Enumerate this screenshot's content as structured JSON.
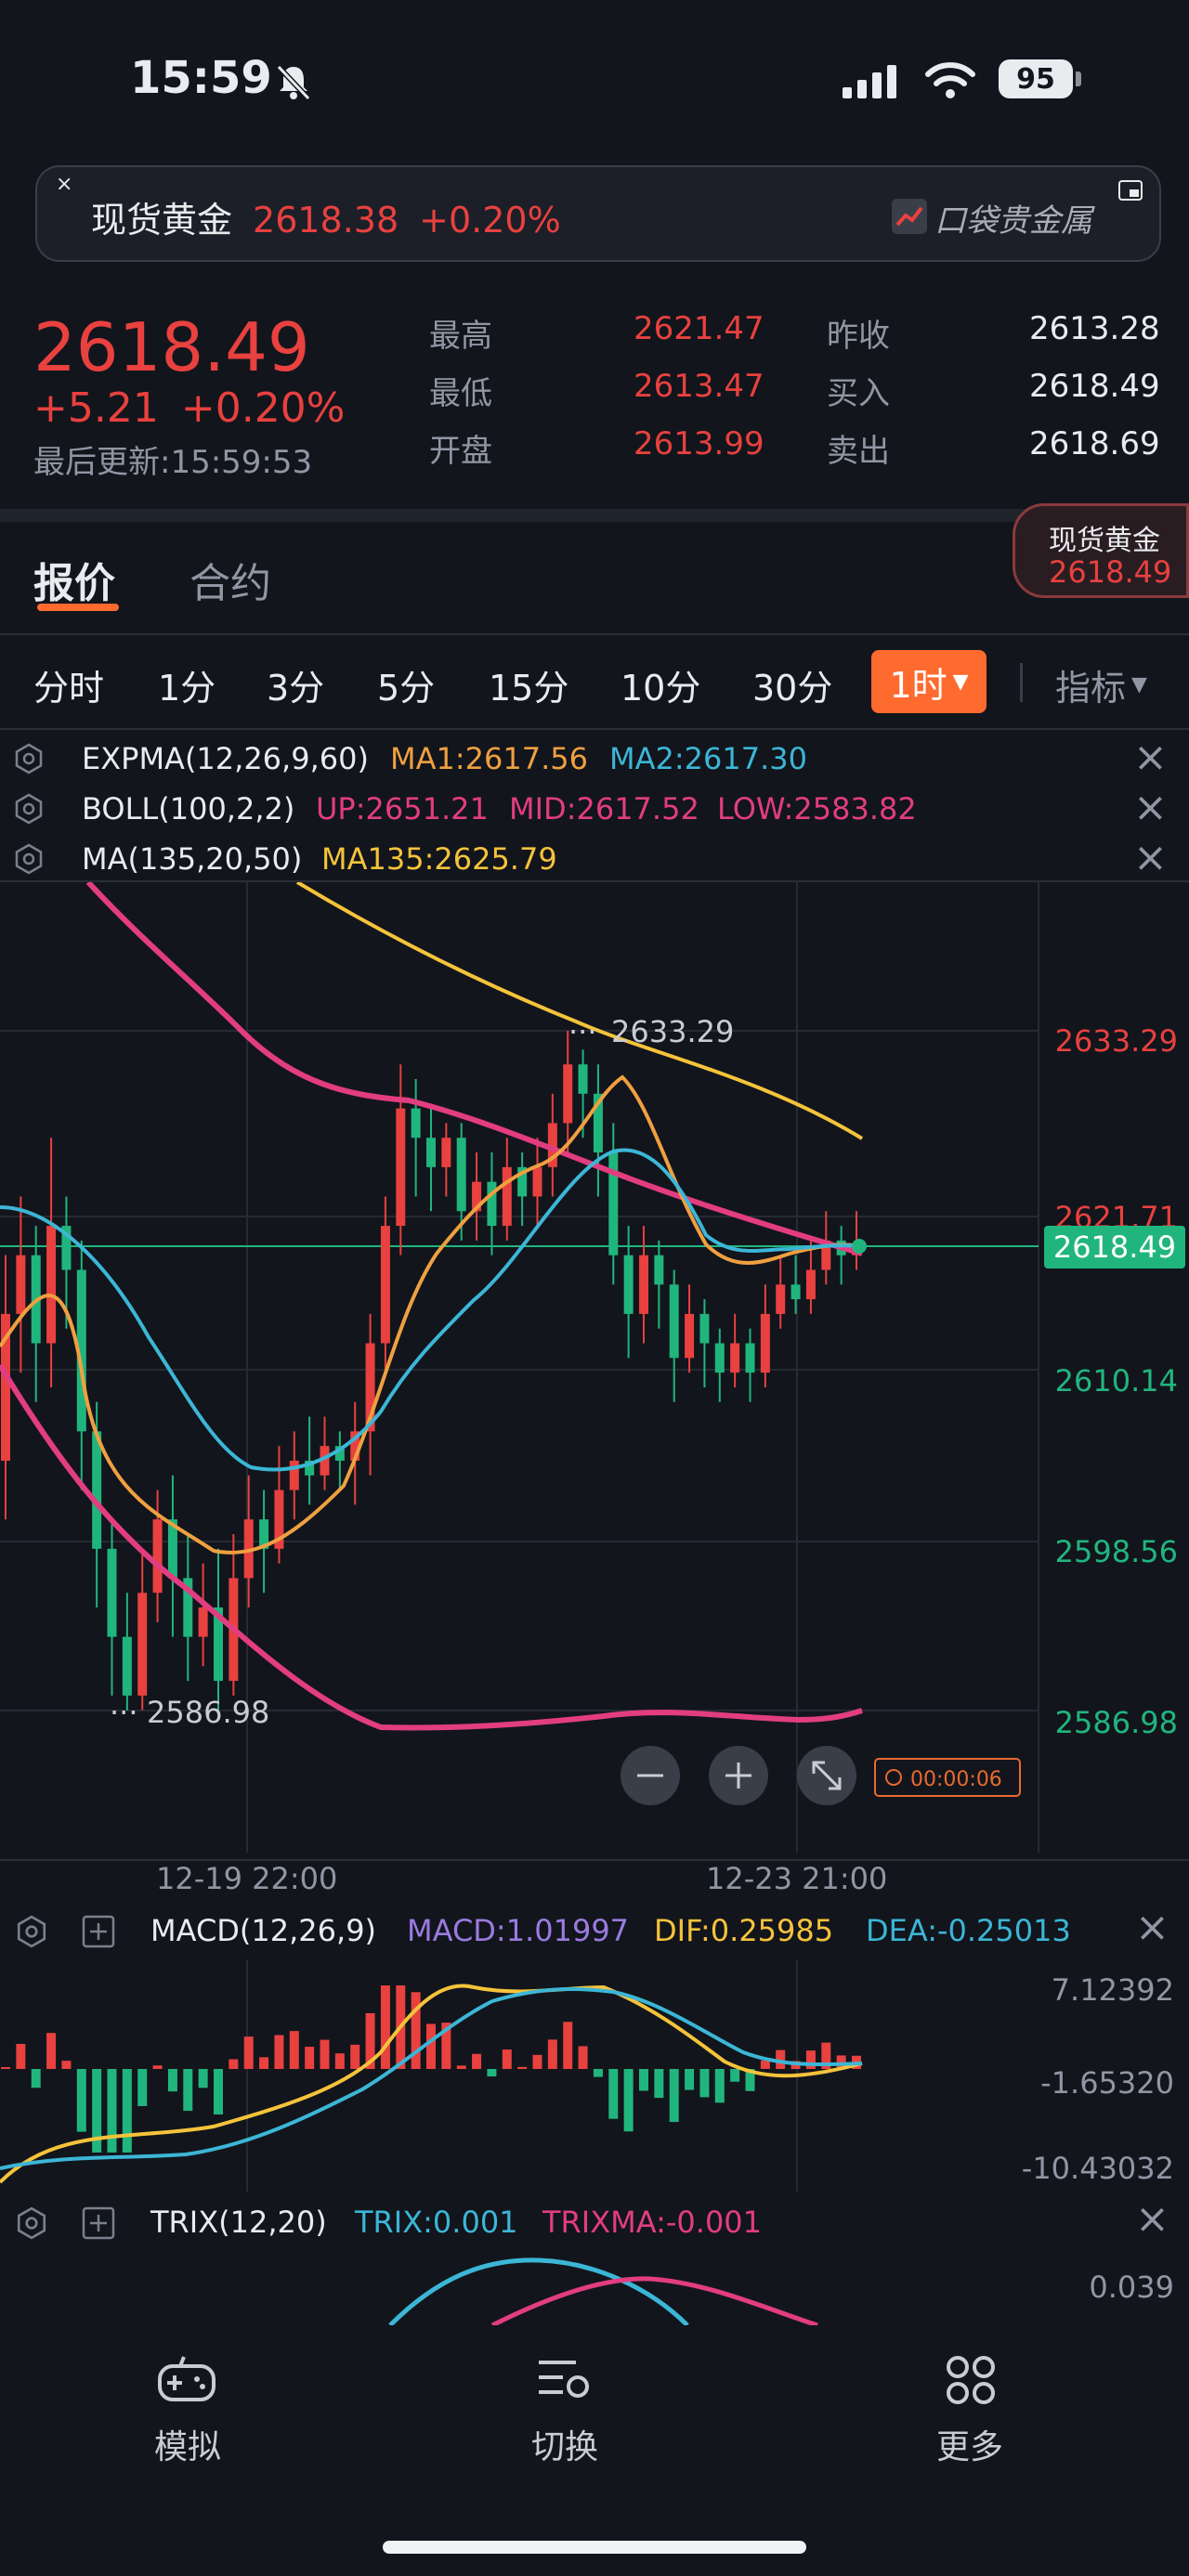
{
  "status_bar": {
    "time": "15:59",
    "battery": "95"
  },
  "banner": {
    "title": "现货黄金",
    "price": "2618.38",
    "change": "+0.20%",
    "brand": "口袋贵金属"
  },
  "quote": {
    "price": "2618.49",
    "change": "+5.21",
    "change_pct": "+0.20%",
    "updated": "最后更新:15:59:53",
    "stats": [
      {
        "label": "最高",
        "value": "2621.47",
        "label2": "昨收",
        "value2": "2613.28"
      },
      {
        "label": "最低",
        "value": "2613.47",
        "label2": "买入",
        "value2": "2618.49"
      },
      {
        "label": "开盘",
        "value": "2613.99",
        "label2": "卖出",
        "value2": "2618.69"
      }
    ]
  },
  "floating_badge": {
    "name": "现货黄金",
    "price": "2618.49"
  },
  "tabs": [
    "报价",
    "合约"
  ],
  "intervals": [
    "分时",
    "1分",
    "3分",
    "5分",
    "15分",
    "10分",
    "30分",
    "1时"
  ],
  "indicator_menu": "指标",
  "overlays": [
    {
      "name": "EXPMA(12,26,9,60)",
      "v1": "MA1:2617.56",
      "v2": "MA2:2617.30",
      "v3": ""
    },
    {
      "name": "BOLL(100,2,2)",
      "v1": "UP:2651.21",
      "v2": "MID:2617.52",
      "v3": "LOW:2583.82"
    },
    {
      "name": "MA(135,20,50)",
      "v1": "MA135:2625.79",
      "v2": "",
      "v3": ""
    }
  ],
  "chart_data": {
    "type": "candlestick",
    "y_axis_labels": [
      "2633.29",
      "2621.71",
      "2610.14",
      "2598.56",
      "2586.98"
    ],
    "current_price": "2618.49",
    "high_marker": "2633.29",
    "low_marker": "2586.98",
    "x_labels": [
      "12-19 22:00",
      "12-23 21:00"
    ],
    "countdown": "00:00:06",
    "candles": [
      [
        2604,
        2614,
        2600,
        2618
      ],
      [
        2614,
        2618,
        2610,
        2622
      ],
      [
        2618,
        2612,
        2608,
        2620
      ],
      [
        2612,
        2620,
        2609,
        2626
      ],
      [
        2620,
        2617,
        2613,
        2622
      ],
      [
        2617,
        2606,
        2602,
        2619
      ],
      [
        2606,
        2598,
        2594,
        2608
      ],
      [
        2598,
        2592,
        2588,
        2600
      ],
      [
        2592,
        2588,
        2586.98,
        2595
      ],
      [
        2588,
        2595,
        2587,
        2598
      ],
      [
        2595,
        2600,
        2593,
        2602
      ],
      [
        2600,
        2596,
        2592,
        2603
      ],
      [
        2596,
        2592,
        2589,
        2599
      ],
      [
        2592,
        2594,
        2590,
        2597
      ],
      [
        2594,
        2589,
        2587,
        2598
      ],
      [
        2589,
        2596,
        2588,
        2599
      ],
      [
        2596,
        2600,
        2594,
        2603
      ],
      [
        2600,
        2598,
        2595,
        2602
      ],
      [
        2598,
        2602,
        2597,
        2605
      ],
      [
        2602,
        2604,
        2600,
        2606
      ],
      [
        2604,
        2603,
        2601,
        2607
      ],
      [
        2603,
        2605,
        2602,
        2607
      ],
      [
        2605,
        2604,
        2602,
        2606
      ],
      [
        2604,
        2606,
        2601,
        2608
      ],
      [
        2606,
        2612,
        2603,
        2614
      ],
      [
        2612,
        2620,
        2610,
        2622
      ],
      [
        2620,
        2628,
        2618,
        2631
      ],
      [
        2628,
        2626,
        2622,
        2630
      ],
      [
        2626,
        2624,
        2621,
        2628
      ],
      [
        2624,
        2626,
        2622,
        2627
      ],
      [
        2626,
        2621,
        2619,
        2627
      ],
      [
        2621,
        2623,
        2619,
        2625
      ],
      [
        2623,
        2620,
        2618,
        2625
      ],
      [
        2620,
        2624,
        2619,
        2626
      ],
      [
        2624,
        2622,
        2620,
        2625
      ],
      [
        2622,
        2624,
        2620,
        2626
      ],
      [
        2624,
        2627,
        2622,
        2629
      ],
      [
        2627,
        2631,
        2625,
        2633.29
      ],
      [
        2631,
        2629,
        2626,
        2632
      ],
      [
        2629,
        2625,
        2622,
        2631
      ],
      [
        2625,
        2618,
        2616,
        2627
      ],
      [
        2618,
        2614,
        2611,
        2620
      ],
      [
        2614,
        2618,
        2612,
        2620
      ],
      [
        2618,
        2616,
        2613,
        2619
      ],
      [
        2616,
        2611,
        2608,
        2617
      ],
      [
        2611,
        2614,
        2610,
        2616
      ],
      [
        2614,
        2612,
        2609,
        2615
      ],
      [
        2612,
        2610,
        2608,
        2613
      ],
      [
        2610,
        2612,
        2609,
        2614
      ],
      [
        2612,
        2610,
        2608,
        2613
      ],
      [
        2610,
        2614,
        2609,
        2616
      ],
      [
        2614,
        2616,
        2613,
        2618
      ],
      [
        2616,
        2615,
        2614,
        2618
      ],
      [
        2615,
        2617,
        2614,
        2619
      ],
      [
        2617,
        2619,
        2616,
        2621
      ],
      [
        2619,
        2618,
        2616,
        2620
      ],
      [
        2618,
        2618.49,
        2617,
        2621
      ]
    ]
  },
  "macd": {
    "name": "MACD(12,26,9)",
    "macd": "MACD:1.01997",
    "dif": "DIF:0.25985",
    "dea": "DEA:-0.25013",
    "axis": [
      "7.12392",
      "-1.65320",
      "-10.43032"
    ]
  },
  "trix": {
    "name": "TRIX(12,20)",
    "trix": "TRIX:0.001",
    "trixma": "TRIXMA:-0.001",
    "axis": [
      "0.039"
    ]
  },
  "bottom_nav": [
    "模拟",
    "切换",
    "更多"
  ],
  "colors": {
    "up": "#e8413f",
    "down": "#21b57e",
    "accent": "#ff7a2f",
    "yellow": "#f5c33b",
    "cyan": "#3cb6d6",
    "pink": "#e23d80",
    "orange": "#f0a040",
    "purple": "#9b7be0"
  }
}
